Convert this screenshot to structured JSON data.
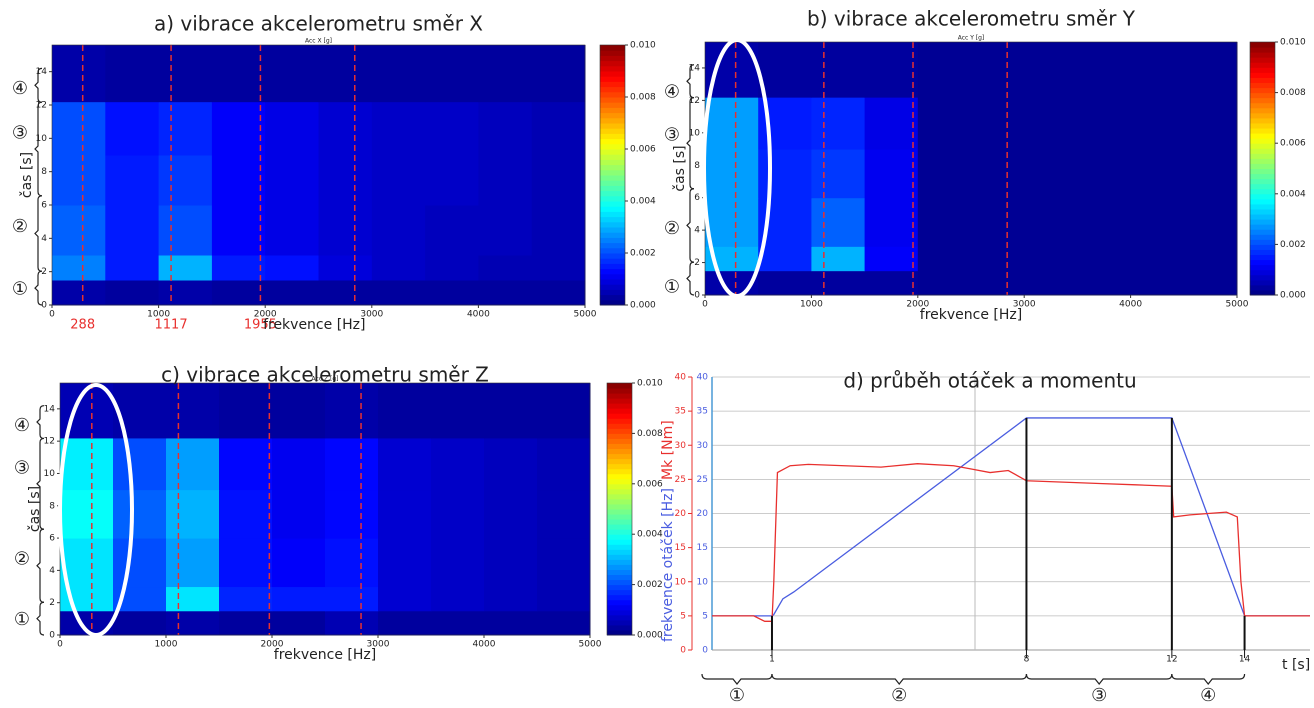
{
  "chart_data": [
    {
      "type": "heatmap",
      "title": "a) vibrace akcelerometru směr X",
      "subtitle": "Acc X [g]",
      "xlabel": "frekvence [Hz]",
      "ylabel": "čas [s]",
      "xlim": [
        0,
        5000
      ],
      "xticks": [
        0,
        1000,
        2000,
        3000,
        4000,
        5000
      ],
      "ylim": [
        0,
        15.6
      ],
      "yticks": [
        0,
        2,
        4,
        6,
        8,
        10,
        12,
        14
      ],
      "xbins": [
        0,
        500,
        1000,
        1500,
        2000,
        2500,
        3000,
        3500,
        4000,
        4500,
        5000
      ],
      "ybins": [
        0,
        1.5,
        3,
        6,
        9,
        12.2,
        15.6
      ],
      "z": [
        [
          0.0004,
          0.0003,
          0.0004,
          0.0003,
          0.0003,
          0.0003,
          0.0003,
          0.0003,
          0.0003,
          0.0003
        ],
        [
          0.0025,
          0.0015,
          0.003,
          0.0015,
          0.0014,
          0.0009,
          0.0007,
          0.0006,
          0.0005,
          0.0005
        ],
        [
          0.0022,
          0.0015,
          0.002,
          0.0012,
          0.001,
          0.0008,
          0.0007,
          0.0006,
          0.0006,
          0.0005
        ],
        [
          0.002,
          0.0015,
          0.0018,
          0.0012,
          0.001,
          0.0008,
          0.0007,
          0.0007,
          0.0006,
          0.0005
        ],
        [
          0.002,
          0.0014,
          0.0016,
          0.0012,
          0.001,
          0.0008,
          0.0007,
          0.0007,
          0.0006,
          0.0005
        ],
        [
          0.0004,
          0.0003,
          0.0003,
          0.0003,
          0.0003,
          0.0003,
          0.0003,
          0.0003,
          0.0003,
          0.0003
        ]
      ],
      "colorbar_lim": [
        0,
        0.01
      ],
      "colorbar_ticks": [
        {
          "value": 0,
          "label": "0.000"
        },
        {
          "value": 0.002,
          "label": "0.002"
        },
        {
          "value": 0.004,
          "label": "0.004"
        },
        {
          "value": 0.006,
          "label": "0.006"
        },
        {
          "value": 0.008,
          "label": "0.008"
        },
        {
          "value": 0.01,
          "label": "0.010"
        }
      ],
      "vlines": [
        {
          "value": 288,
          "label": "288"
        },
        {
          "value": 1117,
          "label": "1117"
        },
        {
          "value": 1955,
          "label": "1955"
        },
        2840
      ],
      "phases": [
        "①",
        "②",
        "③",
        "④"
      ]
    },
    {
      "type": "heatmap",
      "title": "b) vibrace akcelerometru směr Y",
      "subtitle": "Acc Y [g]",
      "xlabel": "frekvence [Hz]",
      "ylabel": "čas [s]",
      "xlim": [
        0,
        5000
      ],
      "xticks": [
        0,
        1000,
        2000,
        3000,
        4000,
        5000
      ],
      "ylim": [
        0,
        15.6
      ],
      "yticks": [
        0,
        2,
        4,
        6,
        8,
        10,
        12,
        14
      ],
      "xbins": [
        0,
        500,
        1000,
        1500,
        2000,
        2500,
        3000,
        3500,
        4000,
        4500,
        5000
      ],
      "ybins": [
        0,
        1.5,
        3,
        6,
        9,
        12.2,
        15.6
      ],
      "z": [
        [
          0.0004,
          0.0003,
          0.0003,
          0.0003,
          0.0002,
          0.0002,
          0.0002,
          0.0002,
          0.0002,
          0.0002
        ],
        [
          0.003,
          0.0016,
          0.003,
          0.0012,
          0.0002,
          0.0002,
          0.0002,
          0.0002,
          0.0002,
          0.0002
        ],
        [
          0.0028,
          0.0016,
          0.0022,
          0.0011,
          0.0002,
          0.0002,
          0.0002,
          0.0002,
          0.0002,
          0.0002
        ],
        [
          0.0028,
          0.0016,
          0.0018,
          0.0011,
          0.0002,
          0.0002,
          0.0002,
          0.0002,
          0.0002,
          0.0002
        ],
        [
          0.0028,
          0.0015,
          0.0016,
          0.001,
          0.0002,
          0.0002,
          0.0002,
          0.0002,
          0.0002,
          0.0002
        ],
        [
          0.0004,
          0.0003,
          0.0003,
          0.0003,
          0.0002,
          0.0002,
          0.0002,
          0.0002,
          0.0002,
          0.0002
        ]
      ],
      "colorbar_lim": [
        0,
        0.01
      ],
      "colorbar_ticks": [
        {
          "value": 0,
          "label": "0.000"
        },
        {
          "value": 0.002,
          "label": "0.002"
        },
        {
          "value": 0.004,
          "label": "0.004"
        },
        {
          "value": 0.006,
          "label": "0.006"
        },
        {
          "value": 0.008,
          "label": "0.008"
        },
        {
          "value": 0.01,
          "label": "0.010"
        }
      ],
      "vlines": [
        288,
        1117,
        1955,
        2840
      ],
      "phases": [
        "①",
        "②",
        "③",
        "④"
      ]
    },
    {
      "type": "heatmap",
      "title": "c) vibrace akcelerometru směr Z",
      "subtitle": "Acc Z [g]",
      "xlabel": "frekvence [Hz]",
      "ylabel": "čas [s]",
      "xlim": [
        0,
        5000
      ],
      "xticks": [
        0,
        1000,
        2000,
        3000,
        4000,
        5000
      ],
      "ylim": [
        0,
        15.6
      ],
      "yticks": [
        0,
        2,
        4,
        6,
        8,
        10,
        12,
        14
      ],
      "xbins": [
        0,
        500,
        1000,
        1500,
        2000,
        2500,
        3000,
        3500,
        4000,
        4500,
        5000
      ],
      "ybins": [
        0,
        1.5,
        3,
        6,
        9,
        12.2,
        15.6
      ],
      "z": [
        [
          0.0004,
          0.0003,
          0.0004,
          0.0003,
          0.0003,
          0.0005,
          0.0003,
          0.0003,
          0.0003,
          0.0003
        ],
        [
          0.0035,
          0.002,
          0.0035,
          0.0016,
          0.0015,
          0.0015,
          0.0008,
          0.0007,
          0.0006,
          0.0005
        ],
        [
          0.0035,
          0.002,
          0.0028,
          0.0014,
          0.0012,
          0.0014,
          0.0008,
          0.0007,
          0.0006,
          0.0005
        ],
        [
          0.0038,
          0.0022,
          0.003,
          0.0014,
          0.0011,
          0.0013,
          0.0008,
          0.0007,
          0.0006,
          0.0005
        ],
        [
          0.0036,
          0.002,
          0.0028,
          0.0013,
          0.0011,
          0.0013,
          0.0008,
          0.0007,
          0.0006,
          0.0005
        ],
        [
          0.0005,
          0.0004,
          0.0004,
          0.0003,
          0.0003,
          0.0004,
          0.0003,
          0.0003,
          0.0003,
          0.0003
        ]
      ],
      "colorbar_lim": [
        0,
        0.01
      ],
      "colorbar_ticks": [
        {
          "value": 0,
          "label": "0.000"
        },
        {
          "value": 0.002,
          "label": "0.002"
        },
        {
          "value": 0.004,
          "label": "0.004"
        },
        {
          "value": 0.006,
          "label": "0.006"
        },
        {
          "value": 0.008,
          "label": "0.008"
        },
        {
          "value": 0.01,
          "label": "0.010"
        }
      ],
      "vlines": [
        300,
        1117,
        1975,
        2840
      ],
      "phases": [
        "①",
        "②",
        "③",
        "④"
      ]
    },
    {
      "type": "line",
      "title": "d) průběh otáček a momentu",
      "xlabel": "t [s]",
      "ylabel": "frekvence otáček [Hz]",
      "y2label": "Mk [Nm]",
      "xlim": [
        -0.65,
        15.8
      ],
      "xticks": [
        1,
        8,
        12,
        14
      ],
      "ylim": [
        0,
        40
      ],
      "yticks": [
        0,
        5,
        10,
        15,
        20,
        25,
        30,
        35,
        40
      ],
      "y2lim": [
        0,
        40
      ],
      "y2ticks": [
        0,
        5,
        10,
        15,
        20,
        25,
        30,
        35,
        40
      ],
      "grid": true,
      "series": [
        {
          "name": "frekvence otáček",
          "color": "#4a5de0",
          "x": [
            -0.65,
            1,
            1.05,
            1.3,
            1.6,
            8,
            12,
            14,
            15.8
          ],
          "values": [
            5,
            5,
            5.2,
            7.5,
            8.5,
            34,
            34,
            5,
            5
          ]
        },
        {
          "name": "Mk",
          "color": "#e8302e",
          "axis": "y2",
          "x": [
            -0.65,
            0.5,
            0.8,
            1,
            1.05,
            1.15,
            1.5,
            2,
            3,
            4,
            5,
            6,
            6.5,
            7,
            7.5,
            8,
            9,
            10,
            11,
            12,
            12.05,
            12.5,
            13,
            13.5,
            13.8,
            13.9,
            14,
            15.8
          ],
          "values": [
            5,
            5,
            4.2,
            4.2,
            10,
            26,
            27,
            27.2,
            27,
            26.8,
            27.3,
            27,
            26.5,
            26,
            26.3,
            24.8,
            24.6,
            24.4,
            24.2,
            24,
            19.5,
            19.8,
            20,
            20.2,
            19.5,
            10,
            5,
            5
          ]
        }
      ],
      "phases": [
        "①",
        "②",
        "③",
        "④"
      ]
    }
  ]
}
